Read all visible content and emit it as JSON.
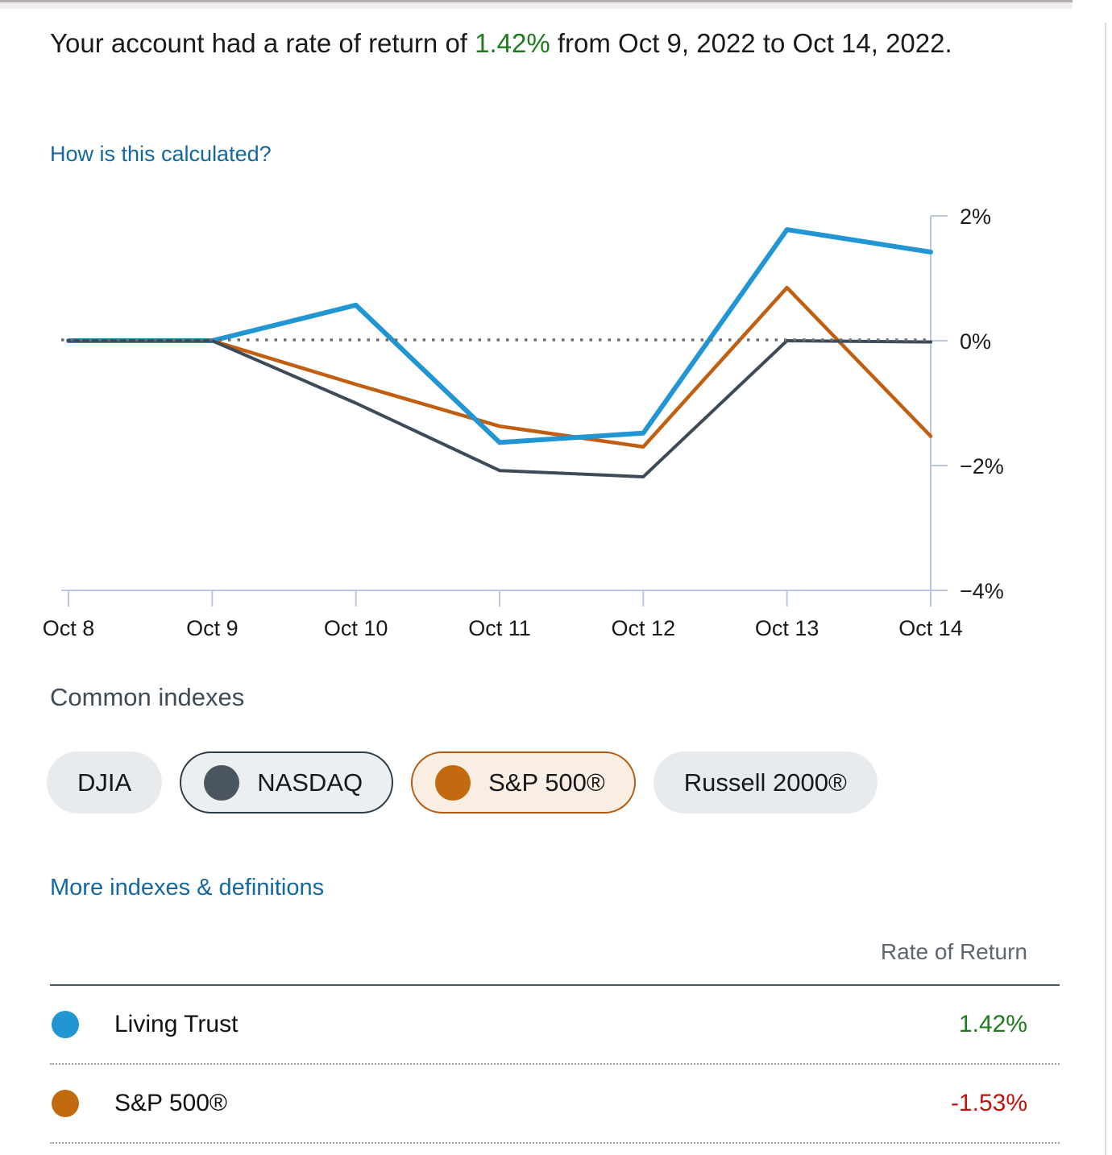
{
  "header": {
    "text_before": "Your account had a rate of return of ",
    "highlight_value": "1.42%",
    "text_after": " from Oct 9, 2022 to Oct 14, 2022.",
    "calc_link": "How is this calculated?"
  },
  "chart_data": {
    "type": "line",
    "x": [
      "Oct 8",
      "Oct 9",
      "Oct 10",
      "Oct 11",
      "Oct 12",
      "Oct 13",
      "Oct 14"
    ],
    "y_tick_labels": [
      "2%",
      "0%",
      "−2%",
      "−4%"
    ],
    "y_tick_values": [
      2,
      0,
      -2,
      -4
    ],
    "ylim": [
      -4,
      2
    ],
    "grid": false,
    "legend_position": "none",
    "axis_color": "#b9c7e2",
    "zero_line": {
      "style": "dotted",
      "color": "#6e6e6e",
      "value": 0
    },
    "series": [
      {
        "name": "Living Trust",
        "color": "#2196d3",
        "values": [
          0,
          0,
          0.57,
          -1.63,
          -1.48,
          1.78,
          1.42
        ]
      },
      {
        "name": "S&P 500®",
        "color": "#c05f11",
        "values": [
          0,
          0,
          -0.7,
          -1.37,
          -1.7,
          0.85,
          -1.53
        ]
      },
      {
        "name": "NASDAQ",
        "color": "#3d4a57",
        "values": [
          0,
          0,
          -1.0,
          -2.08,
          -2.18,
          0,
          -0.02
        ]
      }
    ]
  },
  "common_indexes": {
    "title": "Common indexes",
    "pills": [
      {
        "label": "DJIA",
        "selected": false
      },
      {
        "label": "NASDAQ",
        "selected": true,
        "dot_color": "#4a5560",
        "border_color": "#2c3b4a",
        "bg": "#eceff1"
      },
      {
        "label": "S&P 500®",
        "selected": true,
        "dot_color": "#c26a10",
        "border_color": "#b35a10",
        "bg": "#faeee2"
      },
      {
        "label": "Russell 2000®",
        "selected": false
      }
    ],
    "more_link": "More indexes & definitions"
  },
  "table": {
    "value_header": "Rate of Return",
    "rows": [
      {
        "dot_color": "#2196d3",
        "label": "Living Trust",
        "value": "1.42%",
        "value_color": "#1e7b1e"
      },
      {
        "dot_color": "#c26a10",
        "label": "S&P 500®",
        "value": "-1.53%",
        "value_color": "#c1130e"
      }
    ]
  }
}
